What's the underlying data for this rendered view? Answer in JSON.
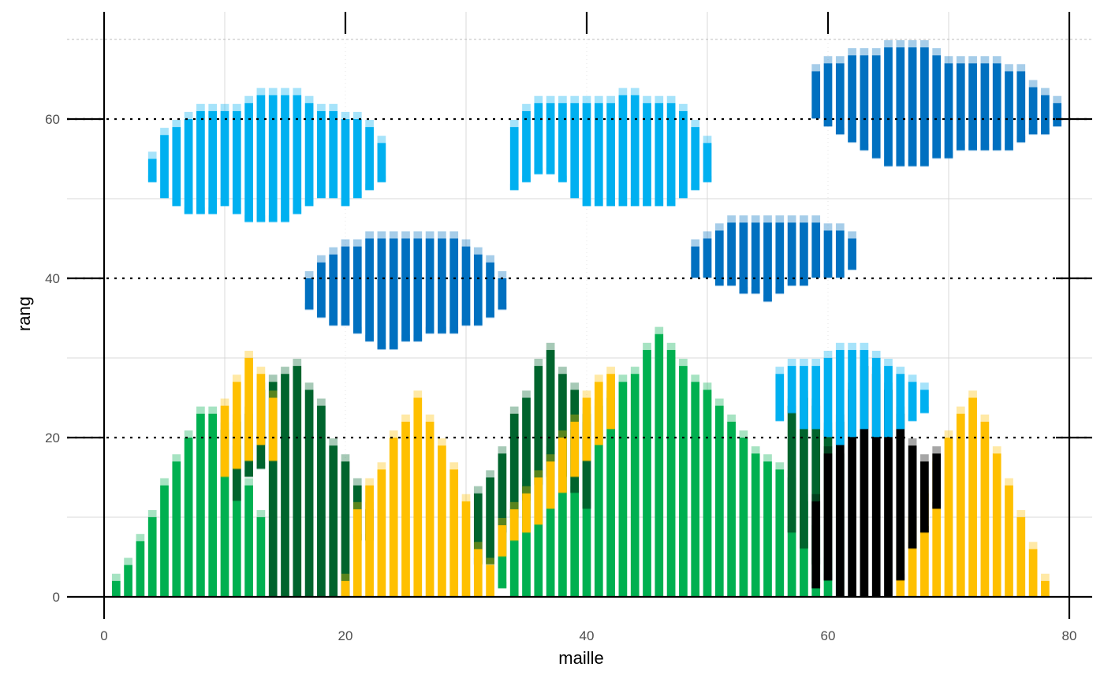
{
  "chart_data": {
    "type": "heatmap",
    "title": "",
    "xlabel": "maille",
    "ylabel": "rang",
    "xlim": [
      0,
      81
    ],
    "ylim": [
      0,
      70
    ],
    "x_ticks": [
      0,
      20,
      40,
      60,
      80
    ],
    "y_ticks": [
      0,
      20,
      40,
      60
    ],
    "x_tick_labels": [
      "0",
      "20",
      "40",
      "60",
      "80"
    ],
    "y_tick_labels": [
      "0",
      "20",
      "40",
      "60"
    ],
    "grid": true,
    "legend": "none",
    "colors": {
      "light_green": "#00b050",
      "dark_green": "#00642d",
      "gold": "#ffc000",
      "black": "#000000",
      "light_blue": "#00b0f0",
      "dark_blue": "#0070c0"
    },
    "series": [
      {
        "color": "light_green",
        "columns": [
          [
            1,
            1,
            2
          ],
          [
            2,
            1,
            4
          ],
          [
            3,
            1,
            7
          ],
          [
            4,
            1,
            10
          ],
          [
            5,
            1,
            14
          ],
          [
            6,
            1,
            17
          ],
          [
            7,
            1,
            20
          ],
          [
            8,
            1,
            23
          ],
          [
            9,
            1,
            23
          ],
          [
            10,
            1,
            21
          ],
          [
            11,
            1,
            19
          ],
          [
            12,
            1,
            14
          ],
          [
            13,
            1,
            10
          ],
          [
            33,
            2,
            9
          ],
          [
            34,
            1,
            11
          ],
          [
            35,
            1,
            14
          ],
          [
            36,
            1,
            16
          ],
          [
            37,
            1,
            18
          ],
          [
            38,
            1,
            20
          ],
          [
            39,
            1,
            21
          ],
          [
            40,
            1,
            23
          ],
          [
            41,
            1,
            24
          ],
          [
            42,
            1,
            25
          ],
          [
            43,
            1,
            27
          ],
          [
            44,
            1,
            28
          ],
          [
            45,
            1,
            31
          ],
          [
            46,
            1,
            33
          ],
          [
            47,
            1,
            31
          ],
          [
            48,
            1,
            29
          ],
          [
            49,
            1,
            27
          ],
          [
            50,
            1,
            26
          ],
          [
            51,
            1,
            24
          ],
          [
            52,
            1,
            22
          ],
          [
            53,
            1,
            20
          ],
          [
            54,
            1,
            18
          ],
          [
            55,
            1,
            17
          ],
          [
            56,
            1,
            16
          ],
          [
            57,
            1,
            15
          ],
          [
            58,
            1,
            12
          ],
          [
            59,
            1,
            9
          ],
          [
            60,
            1,
            5
          ]
        ]
      },
      {
        "color": "dark_green",
        "columns": [
          [
            11,
            13,
            22
          ],
          [
            12,
            16,
            23
          ],
          [
            13,
            17,
            26
          ],
          [
            14,
            1,
            27
          ],
          [
            15,
            1,
            28
          ],
          [
            16,
            1,
            29
          ],
          [
            17,
            1,
            26
          ],
          [
            18,
            1,
            24
          ],
          [
            19,
            1,
            19
          ],
          [
            20,
            1,
            17
          ],
          [
            21,
            8,
            14
          ],
          [
            22,
            8,
            11
          ],
          [
            31,
            5,
            13
          ],
          [
            32,
            5,
            15
          ],
          [
            33,
            9,
            18
          ],
          [
            34,
            11,
            23
          ],
          [
            35,
            13,
            25
          ],
          [
            36,
            15,
            29
          ],
          [
            37,
            16,
            31
          ],
          [
            38,
            16,
            28
          ],
          [
            39,
            14,
            26
          ],
          [
            40,
            12,
            22
          ],
          [
            57,
            9,
            24
          ],
          [
            58,
            7,
            25
          ],
          [
            59,
            5,
            24
          ],
          [
            60,
            3,
            21
          ],
          [
            61,
            1,
            18
          ]
        ]
      },
      {
        "color": "gold",
        "columns": [
          [
            10,
            16,
            24
          ],
          [
            11,
            17,
            27
          ],
          [
            12,
            18,
            30
          ],
          [
            13,
            20,
            28
          ],
          [
            14,
            18,
            25
          ],
          [
            20,
            1,
            2
          ],
          [
            21,
            1,
            11
          ],
          [
            22,
            1,
            14
          ],
          [
            23,
            1,
            16
          ],
          [
            24,
            1,
            20
          ],
          [
            25,
            1,
            22
          ],
          [
            26,
            1,
            25
          ],
          [
            27,
            1,
            22
          ],
          [
            28,
            1,
            19
          ],
          [
            29,
            1,
            16
          ],
          [
            30,
            1,
            12
          ],
          [
            31,
            1,
            6
          ],
          [
            32,
            1,
            4
          ],
          [
            33,
            6,
            9
          ],
          [
            34,
            8,
            11
          ],
          [
            35,
            9,
            13
          ],
          [
            36,
            10,
            15
          ],
          [
            37,
            12,
            17
          ],
          [
            38,
            14,
            20
          ],
          [
            39,
            16,
            22
          ],
          [
            40,
            18,
            25
          ],
          [
            41,
            20,
            27
          ],
          [
            42,
            22,
            28
          ],
          [
            66,
            1,
            6
          ],
          [
            67,
            1,
            10
          ],
          [
            68,
            1,
            13
          ],
          [
            69,
            1,
            17
          ],
          [
            70,
            1,
            20
          ],
          [
            71,
            1,
            23
          ],
          [
            72,
            1,
            25
          ],
          [
            73,
            1,
            22
          ],
          [
            74,
            1,
            18
          ],
          [
            75,
            1,
            14
          ],
          [
            76,
            1,
            10
          ],
          [
            77,
            1,
            6
          ],
          [
            78,
            1,
            2
          ]
        ]
      },
      {
        "color": "black",
        "columns": [
          [
            59,
            2,
            12
          ],
          [
            60,
            3,
            18
          ],
          [
            61,
            1,
            22
          ],
          [
            62,
            1,
            26
          ],
          [
            63,
            1,
            29
          ],
          [
            64,
            1,
            28
          ],
          [
            65,
            1,
            26
          ],
          [
            66,
            3,
            23
          ],
          [
            67,
            7,
            19
          ],
          [
            68,
            9,
            17
          ],
          [
            69,
            12,
            18
          ]
        ]
      },
      {
        "color": "light_blue",
        "columns": [
          [
            56,
            23,
            28
          ],
          [
            57,
            24,
            29
          ],
          [
            58,
            22,
            29
          ],
          [
            59,
            22,
            29
          ],
          [
            60,
            21,
            30
          ],
          [
            61,
            20,
            31
          ],
          [
            62,
            21,
            31
          ],
          [
            63,
            22,
            31
          ],
          [
            64,
            21,
            30
          ],
          [
            65,
            21,
            29
          ],
          [
            66,
            22,
            28
          ],
          [
            67,
            23,
            27
          ],
          [
            68,
            24,
            26
          ],
          [
            4,
            53,
            55
          ],
          [
            5,
            51,
            58
          ],
          [
            6,
            50,
            59
          ],
          [
            7,
            49,
            60
          ],
          [
            8,
            49,
            61
          ],
          [
            9,
            49,
            61
          ],
          [
            10,
            50,
            61
          ],
          [
            11,
            49,
            61
          ],
          [
            12,
            48,
            62
          ],
          [
            13,
            48,
            63
          ],
          [
            14,
            48,
            63
          ],
          [
            15,
            48,
            63
          ],
          [
            16,
            49,
            63
          ],
          [
            17,
            50,
            62
          ],
          [
            18,
            51,
            61
          ],
          [
            19,
            51,
            61
          ],
          [
            20,
            50,
            60
          ],
          [
            21,
            51,
            60
          ],
          [
            22,
            52,
            59
          ],
          [
            23,
            53,
            57
          ],
          [
            34,
            52,
            59
          ],
          [
            35,
            53,
            61
          ],
          [
            36,
            54,
            62
          ],
          [
            37,
            54,
            62
          ],
          [
            38,
            53,
            62
          ],
          [
            39,
            51,
            62
          ],
          [
            40,
            50,
            62
          ],
          [
            41,
            50,
            62
          ],
          [
            42,
            50,
            62
          ],
          [
            43,
            50,
            63
          ],
          [
            44,
            50,
            63
          ],
          [
            45,
            50,
            62
          ],
          [
            46,
            50,
            62
          ],
          [
            47,
            50,
            62
          ],
          [
            48,
            51,
            61
          ],
          [
            49,
            52,
            59
          ],
          [
            50,
            53,
            57
          ]
        ]
      },
      {
        "color": "dark_blue",
        "columns": [
          [
            17,
            37,
            40
          ],
          [
            18,
            36,
            42
          ],
          [
            19,
            35,
            43
          ],
          [
            20,
            35,
            44
          ],
          [
            21,
            34,
            44
          ],
          [
            22,
            33,
            45
          ],
          [
            23,
            32,
            45
          ],
          [
            24,
            32,
            45
          ],
          [
            25,
            33,
            45
          ],
          [
            26,
            33,
            45
          ],
          [
            27,
            34,
            45
          ],
          [
            28,
            34,
            45
          ],
          [
            29,
            34,
            45
          ],
          [
            30,
            35,
            44
          ],
          [
            31,
            35,
            43
          ],
          [
            32,
            36,
            42
          ],
          [
            33,
            37,
            40
          ],
          [
            49,
            41,
            44
          ],
          [
            50,
            41,
            45
          ],
          [
            51,
            40,
            46
          ],
          [
            52,
            40,
            47
          ],
          [
            53,
            39,
            47
          ],
          [
            54,
            39,
            47
          ],
          [
            55,
            38,
            47
          ],
          [
            56,
            39,
            47
          ],
          [
            57,
            40,
            47
          ],
          [
            58,
            40,
            47
          ],
          [
            59,
            41,
            47
          ],
          [
            60,
            41,
            46
          ],
          [
            61,
            41,
            46
          ],
          [
            62,
            42,
            45
          ],
          [
            59,
            61,
            66
          ],
          [
            60,
            60,
            67
          ],
          [
            61,
            59,
            67
          ],
          [
            62,
            58,
            68
          ],
          [
            63,
            57,
            68
          ],
          [
            64,
            56,
            68
          ],
          [
            65,
            55,
            69
          ],
          [
            66,
            55,
            69
          ],
          [
            67,
            55,
            69
          ],
          [
            68,
            55,
            69
          ],
          [
            69,
            56,
            68
          ],
          [
            70,
            56,
            67
          ],
          [
            71,
            57,
            67
          ],
          [
            72,
            57,
            67
          ],
          [
            73,
            57,
            67
          ],
          [
            74,
            57,
            67
          ],
          [
            75,
            57,
            66
          ],
          [
            76,
            58,
            66
          ],
          [
            77,
            59,
            64
          ],
          [
            78,
            59,
            63
          ],
          [
            79,
            60,
            62
          ]
        ]
      }
    ]
  }
}
